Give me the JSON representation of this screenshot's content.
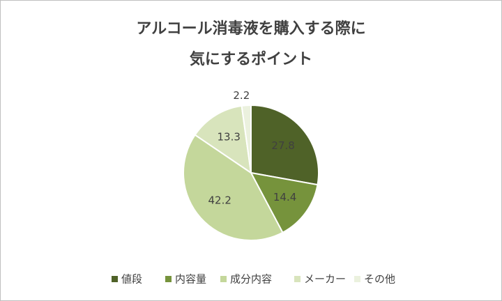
{
  "chart_data": {
    "type": "pie",
    "title": [
      "アルコール消毒液を購入する際に",
      "気にするポイント"
    ],
    "categories": [
      "値段",
      "内容量",
      "成分内容",
      "メーカー",
      "その他"
    ],
    "values": [
      27.8,
      14.4,
      42.2,
      13.3,
      2.2
    ],
    "colors": [
      "#4f6228",
      "#76933c",
      "#c4d79b",
      "#d8e4bc",
      "#ebf1de"
    ],
    "legend": "bottom"
  }
}
